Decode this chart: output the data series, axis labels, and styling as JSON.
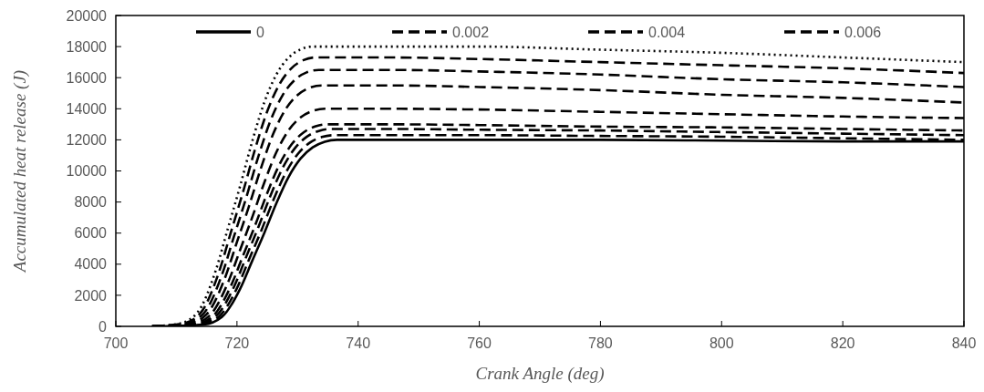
{
  "chart_data": {
    "type": "line",
    "xlabel": "Crank Angle (deg)",
    "ylabel": "Accumulated heat release (J)",
    "xlim": [
      700,
      840
    ],
    "xticks": [
      700,
      720,
      740,
      760,
      780,
      800,
      820,
      840
    ],
    "ylim": [
      0,
      20000
    ],
    "yticks": [
      0,
      2000,
      4000,
      6000,
      8000,
      10000,
      12000,
      14000,
      16000,
      18000,
      20000
    ],
    "grid": false,
    "legend": "top",
    "marker": "none",
    "series": [
      {
        "name": "0",
        "color": "#000000",
        "line_style": "solid",
        "x": [
          706,
          714.5,
          717.5,
          720.5,
          722.5,
          724.5,
          726.5,
          728.5,
          730.5,
          732.5,
          734.5,
          736.5,
          745,
          760,
          780,
          800,
          820,
          840
        ],
        "values": [
          0,
          120,
          600,
          2400,
          4200,
          6000,
          7920,
          9600,
          10800,
          11520,
          11880,
          12000,
          12000,
          12000,
          12000,
          11950,
          11900,
          11900
        ]
      },
      {
        "name": "0.002",
        "color": "#000000",
        "line_style": "dashed",
        "x": [
          706,
          714,
          717,
          720,
          722,
          724,
          726,
          728,
          730,
          732,
          734,
          736,
          745,
          760,
          780,
          800,
          820,
          840
        ],
        "values": [
          0,
          120,
          620,
          2460,
          4310,
          6150,
          8120,
          9840,
          11070,
          11810,
          12180,
          12300,
          12300,
          12300,
          12250,
          12200,
          12100,
          12000
        ]
      },
      {
        "name": "0.004",
        "color": "#000000",
        "line_style": "dashed",
        "x": [
          706,
          713.5,
          716.5,
          719.5,
          721.5,
          723.5,
          725.5,
          727.5,
          729.5,
          731.5,
          733.5,
          735.5,
          745,
          760,
          780,
          800,
          820,
          840
        ],
        "values": [
          0,
          130,
          640,
          2540,
          4450,
          6350,
          8380,
          10160,
          11430,
          12190,
          12570,
          12700,
          12700,
          12650,
          12600,
          12500,
          12400,
          12300
        ]
      },
      {
        "name": "0.006",
        "color": "#000000",
        "line_style": "dashed",
        "x": [
          706,
          713,
          716,
          719,
          721,
          723,
          725,
          727,
          729,
          731,
          733,
          735,
          745,
          760,
          780,
          800,
          820,
          840
        ],
        "values": [
          0,
          130,
          650,
          2600,
          4550,
          6500,
          8580,
          10400,
          11700,
          12480,
          12870,
          13000,
          13000,
          12950,
          12850,
          12800,
          12700,
          12600
        ]
      },
      {
        "color": "#000000",
        "line_style": "dashed",
        "x": [
          706,
          712.5,
          715.5,
          718.5,
          720.5,
          722.5,
          724.5,
          726.5,
          728.5,
          730.5,
          732.5,
          734.5,
          745,
          760,
          780,
          800,
          820,
          840
        ],
        "values": [
          0,
          140,
          700,
          2800,
          4900,
          7000,
          9240,
          11200,
          12600,
          13440,
          13860,
          14000,
          14000,
          13950,
          13800,
          13650,
          13500,
          13400
        ]
      },
      {
        "color": "#000000",
        "line_style": "dashed",
        "x": [
          706,
          712,
          715,
          718,
          720,
          722,
          724,
          726,
          728,
          730,
          732,
          734,
          745,
          760,
          780,
          800,
          820,
          840
        ],
        "values": [
          0,
          160,
          780,
          3100,
          5430,
          7750,
          10230,
          12400,
          13950,
          14880,
          15350,
          15500,
          15500,
          15400,
          15200,
          14900,
          14700,
          14400
        ]
      },
      {
        "color": "#000000",
        "line_style": "dashed",
        "x": [
          706,
          711.5,
          714.5,
          717.5,
          719.5,
          721.5,
          723.5,
          725.5,
          727.5,
          729.5,
          731.5,
          733.5,
          745,
          760,
          780,
          800,
          820,
          840
        ],
        "values": [
          0,
          170,
          830,
          3300,
          5780,
          8250,
          10890,
          13200,
          14850,
          15840,
          16340,
          16500,
          16500,
          16400,
          16200,
          15900,
          15700,
          15400
        ]
      },
      {
        "color": "#000000",
        "line_style": "dashed",
        "x": [
          706,
          711,
          714,
          717,
          719,
          721,
          723,
          725,
          727,
          729,
          731,
          733,
          745,
          760,
          780,
          800,
          820,
          840
        ],
        "values": [
          0,
          170,
          870,
          3460,
          6060,
          8650,
          11420,
          13840,
          15570,
          16610,
          17130,
          17300,
          17300,
          17200,
          17000,
          16800,
          16600,
          16300
        ]
      },
      {
        "color": "#000000",
        "line_style": "dotted",
        "x": [
          706,
          710.5,
          713.5,
          716.5,
          718.5,
          720.5,
          722.5,
          724.5,
          726.5,
          728.5,
          730.5,
          732.5,
          745,
          760,
          780,
          800,
          820,
          840
        ],
        "values": [
          0,
          180,
          900,
          3600,
          6300,
          9000,
          11880,
          14400,
          16200,
          17280,
          17820,
          18000,
          18000,
          18000,
          17800,
          17600,
          17300,
          17000
        ]
      }
    ]
  }
}
